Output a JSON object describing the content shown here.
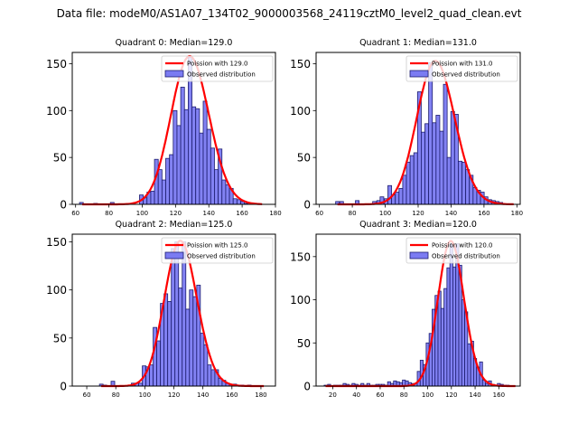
{
  "figure": {
    "suptitle": "Data file: modeM0/AS1A07_134T02_9000003568_24119cztM0_level2_quad_clean.evt"
  },
  "colors": {
    "bar_fill": "#7b7bf2",
    "bar_edge": "#1c1c6e",
    "poisson_line": "#ff0000",
    "axes": "#000000"
  },
  "chart_data": [
    {
      "type": "bar",
      "title": "Quadrant 0: Median=129.0",
      "xlabel": "",
      "ylabel": "",
      "xlim": [
        58,
        180
      ],
      "ylim": [
        0,
        162
      ],
      "xticks": [
        60,
        80,
        100,
        120,
        140,
        160,
        180
      ],
      "yticks": [
        0,
        50,
        100,
        150
      ],
      "legend": [
        "Poission with 129.0",
        "Observed distribution"
      ],
      "legend_placement": "top-right",
      "bin_width": 2.25,
      "bins": {
        "x": [
          63.5,
          72,
          82,
          99.5,
          101.75,
          104,
          106.25,
          108.5,
          110.75,
          113,
          115.25,
          117.5,
          119.75,
          122,
          124.25,
          126.5,
          128.75,
          131,
          133.25,
          135.5,
          137.75,
          140,
          142.25,
          144.5,
          146.75,
          149,
          151.25,
          153.5,
          155.75,
          158,
          160.25,
          162.5
        ],
        "counts": [
          2,
          1,
          2,
          10,
          7,
          13,
          14,
          48,
          37,
          26,
          49,
          53,
          100,
          84,
          125,
          101,
          157,
          104,
          102,
          76,
          110,
          80,
          60,
          37,
          59,
          26,
          21,
          17,
          6,
          5,
          3,
          1
        ]
      },
      "poisson": {
        "mean": 129.0,
        "peak": 158
      }
    },
    {
      "type": "bar",
      "title": "Quadrant 1: Median=131.0",
      "xlabel": "",
      "ylabel": "",
      "xlim": [
        58,
        182
      ],
      "ylim": [
        0,
        162
      ],
      "xticks": [
        60,
        80,
        100,
        120,
        140,
        160,
        180
      ],
      "yticks": [
        0,
        50,
        100,
        150
      ],
      "legend": [
        "Poission with 131.0",
        "Observed distribution"
      ],
      "legend_placement": "top-right",
      "bin_width": 2.25,
      "bins": {
        "x": [
          71,
          73.5,
          83,
          93.5,
          96,
          98,
          100.5,
          102.75,
          105,
          107.25,
          109.5,
          111.75,
          114,
          116.25,
          118.5,
          120.75,
          123,
          125.25,
          127.5,
          129.75,
          132,
          134.25,
          136.5,
          138.75,
          141,
          143.25,
          145.5,
          147.75,
          150,
          152.25,
          154.5,
          156.75,
          159,
          161.25,
          163.5,
          165.75,
          168,
          170.25
        ],
        "counts": [
          3,
          3,
          4,
          3,
          4,
          8,
          6,
          20,
          10,
          13,
          17,
          31,
          45,
          52,
          55,
          120,
          77,
          86,
          151,
          87,
          95,
          78,
          128,
          50,
          99,
          96,
          46,
          45,
          37,
          31,
          18,
          15,
          13,
          8,
          5,
          4,
          3,
          2
        ]
      },
      "poisson": {
        "mean": 131.0,
        "peak": 153
      }
    },
    {
      "type": "bar",
      "title": "Quadrant 2: Median=125.0",
      "xlabel": "",
      "ylabel": "",
      "xlim": [
        50,
        190
      ],
      "ylim": [
        0,
        158
      ],
      "xticks": [
        60,
        80,
        100,
        120,
        140,
        160,
        180
      ],
      "yticks": [
        0,
        50,
        100,
        150
      ],
      "legend": [
        "Poission with 125.0",
        "Observed distribution"
      ],
      "legend_placement": "top-right",
      "bin_width": 2.5,
      "bins": {
        "x": [
          70,
          72.5,
          78,
          92,
          94.5,
          97,
          99.5,
          102,
          104.5,
          107,
          109.5,
          112,
          114.5,
          117,
          119.5,
          122,
          124.5,
          127,
          129.5,
          132,
          134.5,
          137,
          139.5,
          142,
          144.5,
          147,
          149.5,
          152,
          154.5,
          157,
          159.5,
          162,
          164.5,
          167,
          172
        ],
        "counts": [
          2,
          1,
          5,
          3,
          3,
          3,
          21,
          20,
          22,
          61,
          47,
          86,
          96,
          88,
          143,
          150,
          102,
          150,
          80,
          100,
          93,
          105,
          55,
          43,
          22,
          17,
          17,
          8,
          6,
          3,
          2,
          2,
          1,
          1,
          1
        ]
      },
      "poisson": {
        "mean": 125.0,
        "peak": 151
      }
    },
    {
      "type": "bar",
      "title": "Quadrant 3: Median=120.0",
      "xlabel": "",
      "ylabel": "",
      "xlim": [
        6,
        178
      ],
      "ylim": [
        0,
        176
      ],
      "xticks": [
        20,
        40,
        60,
        80,
        100,
        120,
        140,
        160
      ],
      "yticks": [
        0,
        50,
        100,
        150
      ],
      "legend": [
        "Poission with 120.0",
        "Observed distribution"
      ],
      "legend_placement": "top-right",
      "bin_width": 2.5,
      "bins": {
        "x": [
          14,
          17,
          22,
          25,
          27.5,
          30,
          32.5,
          35,
          37.5,
          40,
          42.5,
          45,
          47.5,
          50,
          52.5,
          55,
          57.5,
          60,
          62.5,
          65,
          67.5,
          70,
          72.5,
          75,
          77.5,
          80,
          82.5,
          85,
          87.5,
          90,
          92.5,
          95,
          97.5,
          100,
          102.5,
          105,
          107.5,
          110,
          112.5,
          115,
          117.5,
          120,
          122.5,
          125,
          127.5,
          130,
          132.5,
          135,
          137.5,
          140,
          142.5,
          145,
          147.5,
          150,
          152.5,
          155,
          157.5,
          160,
          162.5,
          165,
          167.5
        ],
        "counts": [
          1,
          2,
          1,
          1,
          1,
          3,
          2,
          1,
          3,
          2,
          1,
          3,
          1,
          3,
          1,
          1,
          2,
          2,
          2,
          1,
          5,
          3,
          6,
          5,
          4,
          7,
          6,
          4,
          3,
          3,
          17,
          30,
          25,
          50,
          61,
          89,
          105,
          110,
          90,
          113,
          137,
          165,
          138,
          165,
          140,
          100,
          86,
          49,
          52,
          32,
          22,
          28,
          7,
          3,
          6,
          2,
          1,
          3,
          2,
          1,
          1
        ]
      },
      "poisson": {
        "mean": 120.0,
        "peak": 168
      }
    }
  ]
}
